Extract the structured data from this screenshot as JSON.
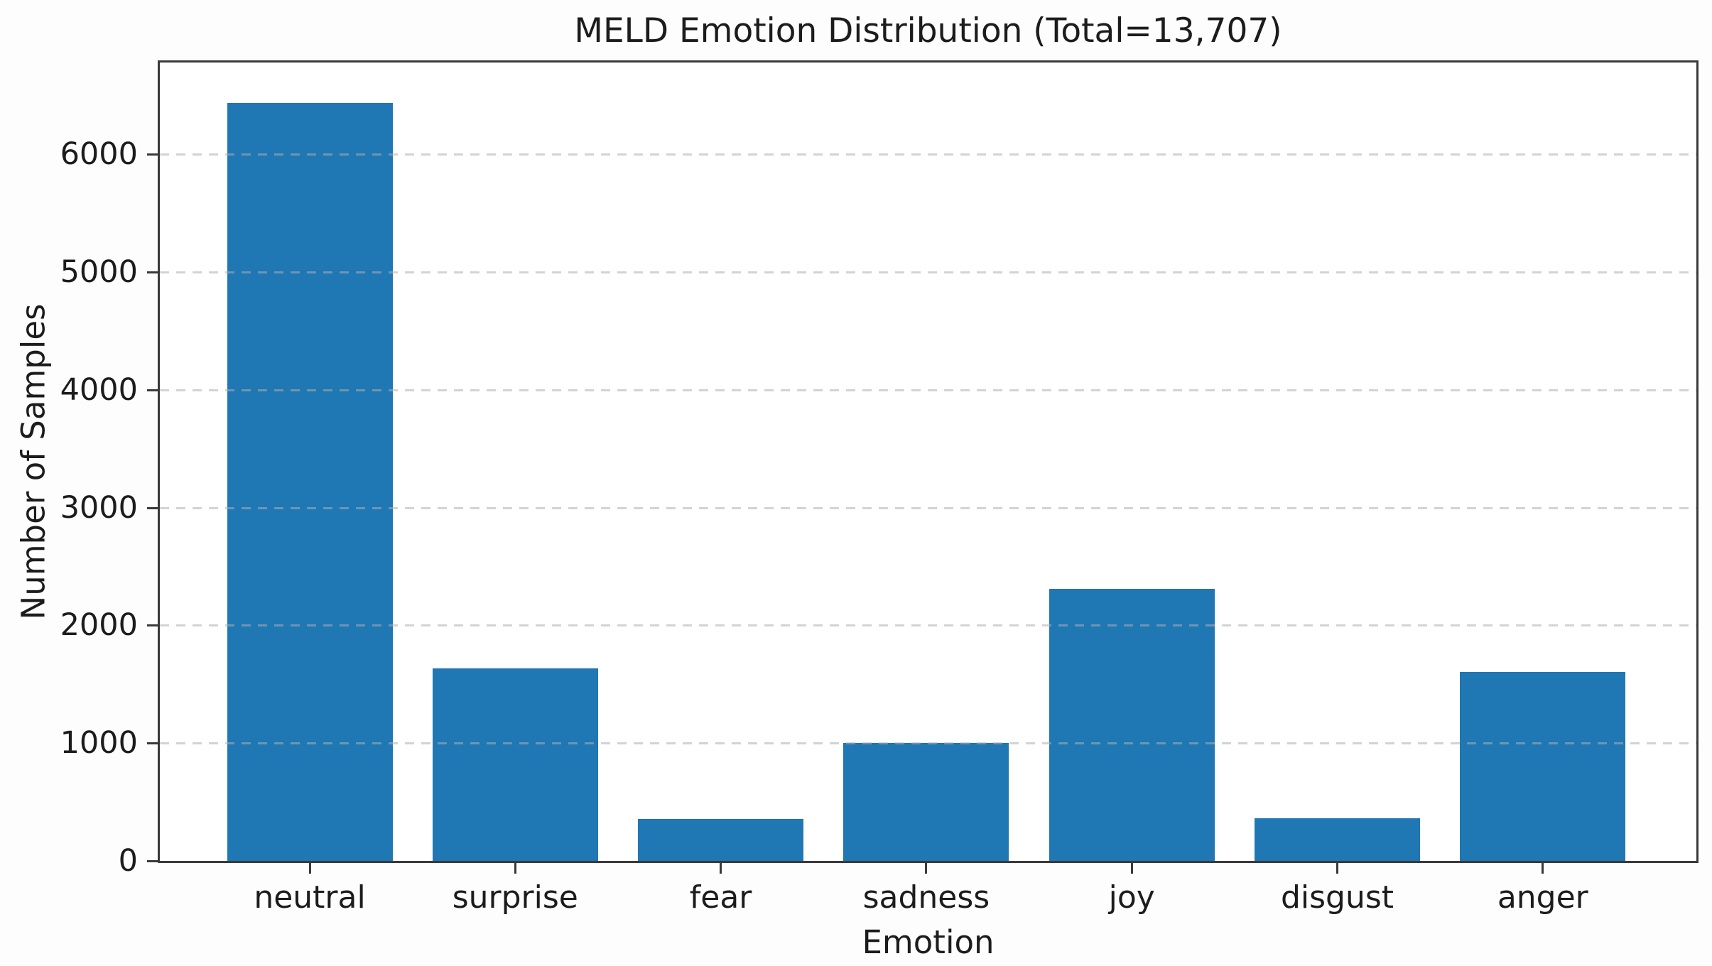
{
  "chart_data": {
    "type": "bar",
    "title": "MELD Emotion Distribution (Total=13,707)",
    "total": 13707,
    "categories": [
      "neutral",
      "surprise",
      "fear",
      "sadness",
      "joy",
      "disgust",
      "anger"
    ],
    "values": [
      6435,
      1636,
      358,
      1002,
      2308,
      361,
      1607
    ],
    "xlabel": "Emotion",
    "ylabel": "Number of Samples",
    "ylim": [
      0,
      6780
    ],
    "yticks": [
      0,
      1000,
      2000,
      3000,
      4000,
      5000,
      6000
    ],
    "grid": "horizontal-dashed",
    "legend": "none",
    "bar_color": "#1f77b4",
    "grid_color": "#afafaf",
    "spine_color": "#3a3a3a",
    "text_color": "#1c1c1c",
    "background": "#fdfdfd"
  }
}
